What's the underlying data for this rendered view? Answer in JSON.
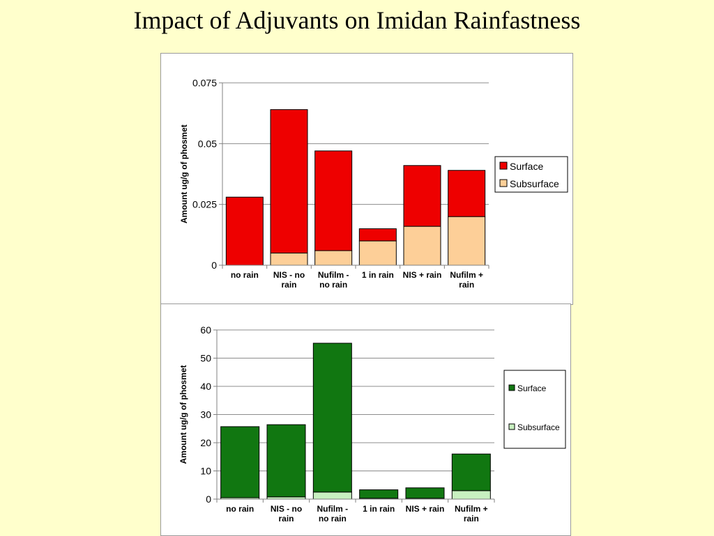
{
  "slide": {
    "title": "Impact of Adjuvants on Imidan Rainfastness"
  },
  "colors": {
    "surface_top": "#ee0000",
    "subsurface_top": "#fdcf98",
    "surface_bottom": "#117711",
    "subsurface_bottom": "#c8f0c0"
  },
  "chart_data": [
    {
      "type": "bar",
      "stacked": true,
      "title": "",
      "xlabel": "",
      "ylabel": "Amount ug/g of phosmet",
      "categories": [
        "no rain",
        "NIS - no rain",
        "Nufilm - no rain",
        "1 in rain",
        "NIS + rain",
        "Nufilm + rain"
      ],
      "category_lines": [
        [
          "no rain"
        ],
        [
          "NIS - no",
          "rain"
        ],
        [
          "Nufilm -",
          "no rain"
        ],
        [
          "1 in rain"
        ],
        [
          "NIS + rain"
        ],
        [
          "Nufilm +",
          "rain"
        ]
      ],
      "series": [
        {
          "name": "Subsurface",
          "values": [
            0,
            0.005,
            0.006,
            0.01,
            0.016,
            0.02
          ]
        },
        {
          "name": "Surface",
          "values": [
            0.028,
            0.059,
            0.041,
            0.005,
            0.025,
            0.019
          ]
        }
      ],
      "legend_order": [
        "Surface",
        "Subsurface"
      ],
      "ylim": [
        0,
        0.075
      ],
      "yticks": [
        "0",
        "0.025",
        "0.05",
        "0.075"
      ],
      "ytick_values": [
        0,
        0.025,
        0.05,
        0.075
      ],
      "grid": true,
      "legend_position": "right"
    },
    {
      "type": "bar",
      "stacked": true,
      "title": "",
      "xlabel": "",
      "ylabel": "Amount ug/g of phosmet",
      "categories": [
        "no rain",
        "NIS - no rain",
        "Nufilm - no rain",
        "1 in rain",
        "NIS + rain",
        "Nufilm + rain"
      ],
      "category_lines": [
        [
          "no rain"
        ],
        [
          "NIS - no",
          "rain"
        ],
        [
          "Nufilm -",
          "no rain"
        ],
        [
          "1 in rain"
        ],
        [
          "NIS + rain"
        ],
        [
          "Nufilm +",
          "rain"
        ]
      ],
      "series": [
        {
          "name": "Subsurface",
          "values": [
            0.5,
            0.8,
            2.5,
            0.3,
            0.3,
            3
          ]
        },
        {
          "name": "Surface",
          "values": [
            25.2,
            25.6,
            52.8,
            3,
            3.7,
            13
          ]
        }
      ],
      "legend_order": [
        "Surface",
        "Subsurface"
      ],
      "ylim": [
        0,
        60
      ],
      "yticks": [
        "0",
        "10",
        "20",
        "30",
        "40",
        "50",
        "60"
      ],
      "ytick_values": [
        0,
        10,
        20,
        30,
        40,
        50,
        60
      ],
      "grid": true,
      "legend_position": "right"
    }
  ]
}
